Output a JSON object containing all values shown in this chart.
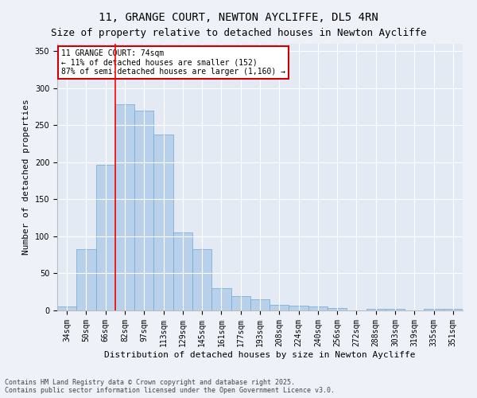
{
  "title": "11, GRANGE COURT, NEWTON AYCLIFFE, DL5 4RN",
  "subtitle": "Size of property relative to detached houses in Newton Aycliffe",
  "xlabel": "Distribution of detached houses by size in Newton Aycliffe",
  "ylabel": "Number of detached properties",
  "categories": [
    "34sqm",
    "50sqm",
    "66sqm",
    "82sqm",
    "97sqm",
    "113sqm",
    "129sqm",
    "145sqm",
    "161sqm",
    "177sqm",
    "193sqm",
    "208sqm",
    "224sqm",
    "240sqm",
    "256sqm",
    "272sqm",
    "288sqm",
    "303sqm",
    "319sqm",
    "335sqm",
    "351sqm"
  ],
  "values": [
    5,
    83,
    197,
    278,
    270,
    238,
    105,
    83,
    30,
    19,
    15,
    8,
    6,
    5,
    3,
    0,
    2,
    2,
    0,
    2,
    2
  ],
  "bar_color": "#b8d0ea",
  "bar_edge_color": "#6aaad4",
  "ylim": [
    0,
    360
  ],
  "yticks": [
    0,
    50,
    100,
    150,
    200,
    250,
    300,
    350
  ],
  "red_line_x": 2.5,
  "annotation_text": "11 GRANGE COURT: 74sqm\n← 11% of detached houses are smaller (152)\n87% of semi-detached houses are larger (1,160) →",
  "annotation_box_color": "#ffffff",
  "annotation_box_edge": "#cc0000",
  "footer1": "Contains HM Land Registry data © Crown copyright and database right 2025.",
  "footer2": "Contains public sector information licensed under the Open Government Licence v3.0.",
  "background_color": "#eef2f8",
  "plot_background": "#e4eaf4",
  "grid_color": "#ffffff",
  "title_fontsize": 10,
  "subtitle_fontsize": 9,
  "axis_label_fontsize": 8,
  "tick_fontsize": 7,
  "annotation_fontsize": 7,
  "footer_fontsize": 6
}
